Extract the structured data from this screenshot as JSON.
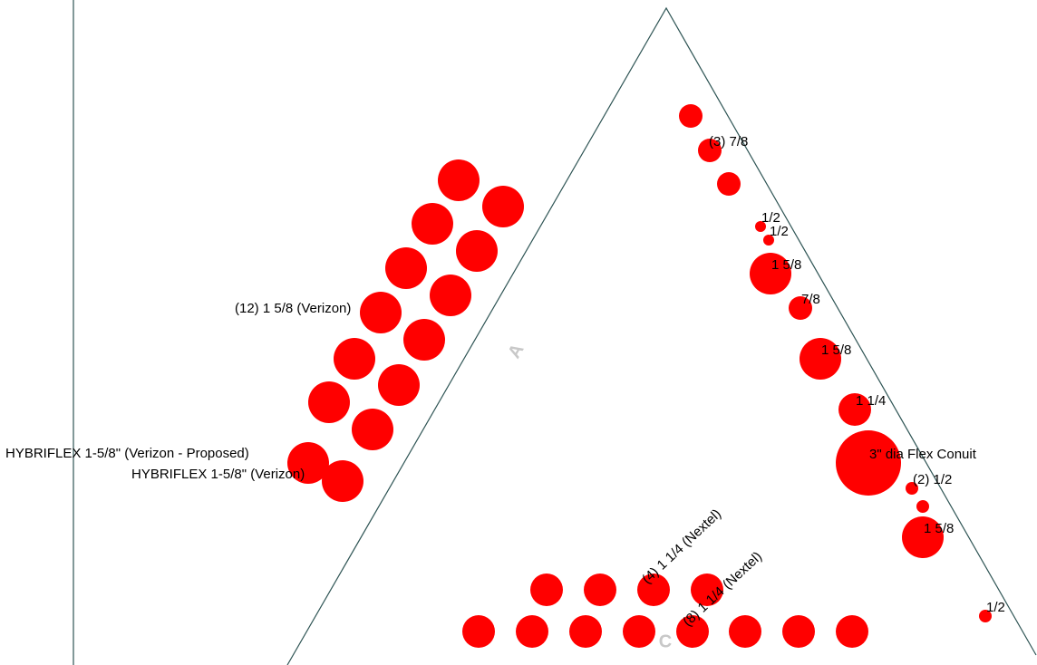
{
  "colors": {
    "tower_outline": "#2f5555",
    "edge_line": "#2f5555",
    "cable": "#ff0000",
    "label_text": "#000000",
    "face_label": "#c8c8c8",
    "background": "#ffffff"
  },
  "faces": {
    "a": "A",
    "c": "C"
  },
  "labels": {
    "verizon_group": "(12) 1 5/8 (Verizon)",
    "hybriflex_proposed": "HYBRIFLEX 1-5/8\" (Verizon - Proposed)",
    "hybriflex_existing": "HYBRIFLEX 1-5/8\" (Verizon)",
    "three_7_8": "(3) 7/8",
    "half_1": "1/2",
    "half_2": "1/2",
    "one_5_8_a": "1 5/8",
    "seven_8": "7/8",
    "one_5_8_b": "1 5/8",
    "one_1_4": "1 1/4",
    "flex_conduit": "3\" dia Flex Conuit",
    "two_half": "(2) 1/2",
    "one_5_8_c": "1 5/8",
    "half_3": "1/2",
    "nextel_1_1_4": "(4) 1 1/4 (Nextel)",
    "nextel_8": "(8) 1 1/4 (Nextel)"
  }
}
